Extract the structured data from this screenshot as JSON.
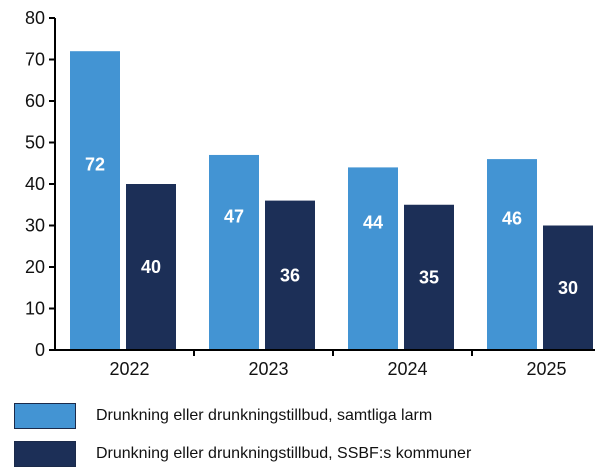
{
  "chart_data": {
    "type": "bar",
    "categories": [
      "2022",
      "2023",
      "2024",
      "2025"
    ],
    "series": [
      {
        "name": "Drunkning eller drunkningstillbud, samtliga larm",
        "values": [
          72,
          47,
          44,
          46
        ],
        "color": "#4394d3"
      },
      {
        "name": "Drunkning eller drunkningstillbud, SSBF:s kommuner",
        "values": [
          40,
          36,
          35,
          30
        ],
        "color": "#1c2f57"
      }
    ],
    "ylim": [
      0,
      80
    ],
    "yticks": [
      "0",
      "10",
      "20",
      "30",
      "40",
      "50",
      "60",
      "70",
      "80"
    ],
    "grid": false,
    "legend_position": "bottom-left",
    "title": "",
    "xlabel": "",
    "ylabel": ""
  }
}
